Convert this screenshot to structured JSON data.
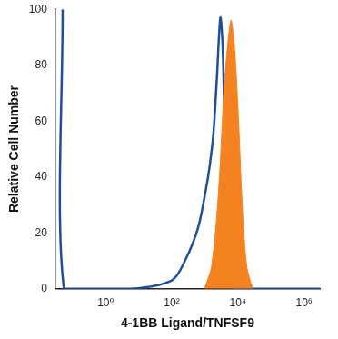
{
  "chart_data": {
    "type": "line",
    "x_label": "4-1BB Ligand/TNFSF9",
    "y_label": "Relative Cell Number",
    "log": "x",
    "grid": false,
    "xlim": [
      0.03,
      3000000
    ],
    "xticks": [
      {
        "value": 1,
        "label": "10⁰"
      },
      {
        "value": 100,
        "label": "10²"
      },
      {
        "value": 10000,
        "label": "10⁴"
      },
      {
        "value": 1000000,
        "label": "10⁶"
      }
    ],
    "ylim": [
      0,
      100
    ],
    "yticks": [
      0,
      20,
      40,
      60,
      80,
      100
    ],
    "series": [
      {
        "type": "area",
        "color": "#f58220",
        "x": [
          970,
          1600,
          2600,
          4000,
          6100,
          7700,
          10000,
          13500,
          18500,
          28000
        ],
        "values": [
          0,
          8,
          35,
          75,
          96,
          88,
          65,
          30,
          8,
          0
        ]
      },
      {
        "type": "line",
        "color": "#1f4e9c",
        "x": [
          0.05,
          0.055,
          6,
          100,
          250,
          630,
          1170,
          1400,
          1800,
          2300,
          2950,
          3500,
          4200,
          5000,
          6500,
          8800,
          3000000
        ],
        "values": [
          100,
          0,
          0,
          3,
          10,
          22,
          38,
          44,
          55,
          75,
          97,
          85,
          40,
          10,
          2,
          0,
          0
        ]
      }
    ]
  }
}
